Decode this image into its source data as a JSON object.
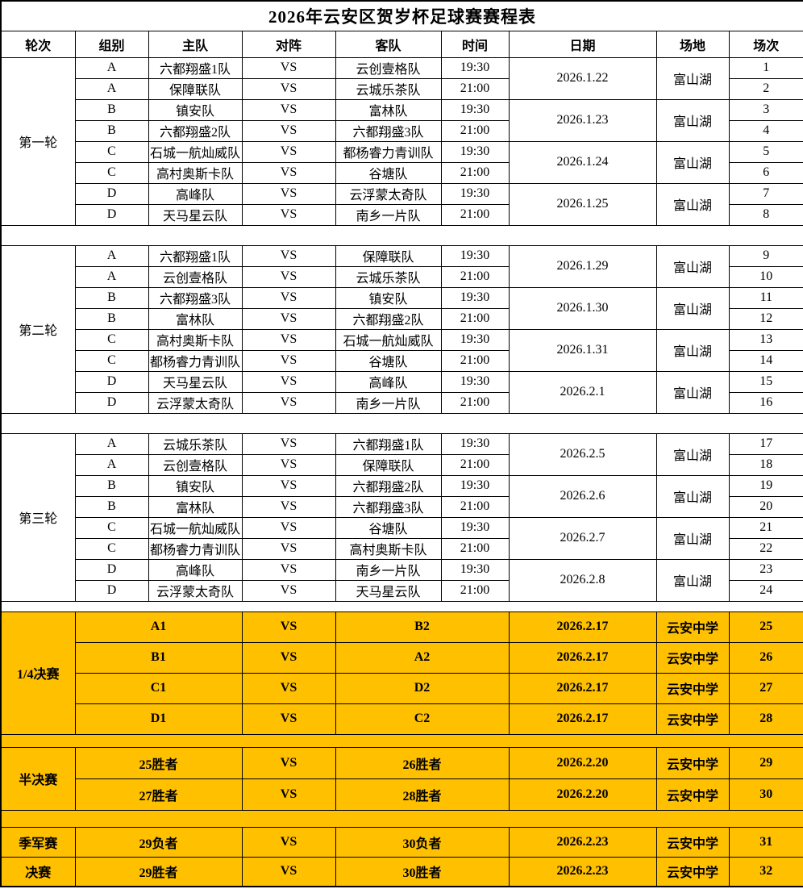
{
  "title": "2026年云安区贺岁杯足球赛赛程表",
  "columns": [
    "轮次",
    "组别",
    "主队",
    "对阵",
    "客队",
    "时间",
    "日期",
    "场地",
    "场次"
  ],
  "vs_label": "VS",
  "colors": {
    "highlight": "#FFC000",
    "grid": "#000000",
    "background": "#FFFFFF"
  },
  "rounds": [
    {
      "label": "第一轮",
      "matches": [
        {
          "group": "A",
          "home": "六都翔盛1队",
          "away": "云创壹格队",
          "time": "19:30",
          "match_no": "1"
        },
        {
          "group": "A",
          "home": "保障联队",
          "away": "云城乐茶队",
          "time": "21:00",
          "match_no": "2"
        },
        {
          "group": "B",
          "home": "镇安队",
          "away": "富林队",
          "time": "19:30",
          "match_no": "3"
        },
        {
          "group": "B",
          "home": "六都翔盛2队",
          "away": "六都翔盛3队",
          "time": "21:00",
          "match_no": "4"
        },
        {
          "group": "C",
          "home": "石城一航灿威队",
          "away": "都杨睿力青训队",
          "time": "19:30",
          "match_no": "5"
        },
        {
          "group": "C",
          "home": "高村奥斯卡队",
          "away": "谷塘队",
          "time": "21:00",
          "match_no": "6"
        },
        {
          "group": "D",
          "home": "高峰队",
          "away": "云浮蒙太奇队",
          "time": "19:30",
          "match_no": "7"
        },
        {
          "group": "D",
          "home": "天马星云队",
          "away": "南乡一片队",
          "time": "21:00",
          "match_no": "8"
        }
      ],
      "dates": [
        {
          "date": "2026.1.22",
          "venue": "富山湖"
        },
        {
          "date": "2026.1.23",
          "venue": "富山湖"
        },
        {
          "date": "2026.1.24",
          "venue": "富山湖"
        },
        {
          "date": "2026.1.25",
          "venue": "富山湖"
        }
      ]
    },
    {
      "label": "第二轮",
      "matches": [
        {
          "group": "A",
          "home": "六都翔盛1队",
          "away": "保障联队",
          "time": "19:30",
          "match_no": "9"
        },
        {
          "group": "A",
          "home": "云创壹格队",
          "away": "云城乐茶队",
          "time": "21:00",
          "match_no": "10"
        },
        {
          "group": "B",
          "home": "六都翔盛3队",
          "away": "镇安队",
          "time": "19:30",
          "match_no": "11"
        },
        {
          "group": "B",
          "home": "富林队",
          "away": "六都翔盛2队",
          "time": "21:00",
          "match_no": "12"
        },
        {
          "group": "C",
          "home": "高村奥斯卡队",
          "away": "石城一航灿威队",
          "time": "19:30",
          "match_no": "13"
        },
        {
          "group": "C",
          "home": "都杨睿力青训队",
          "away": "谷塘队",
          "time": "21:00",
          "match_no": "14"
        },
        {
          "group": "D",
          "home": "天马星云队",
          "away": "高峰队",
          "time": "19:30",
          "match_no": "15"
        },
        {
          "group": "D",
          "home": "云浮蒙太奇队",
          "away": "南乡一片队",
          "time": "21:00",
          "match_no": "16"
        }
      ],
      "dates": [
        {
          "date": "2026.1.29",
          "venue": "富山湖"
        },
        {
          "date": "2026.1.30",
          "venue": "富山湖"
        },
        {
          "date": "2026.1.31",
          "venue": "富山湖"
        },
        {
          "date": "2026.2.1",
          "venue": "富山湖"
        }
      ]
    },
    {
      "label": "第三轮",
      "matches": [
        {
          "group": "A",
          "home": "云城乐茶队",
          "away": "六都翔盛1队",
          "time": "19:30",
          "match_no": "17"
        },
        {
          "group": "A",
          "home": "云创壹格队",
          "away": "保障联队",
          "time": "21:00",
          "match_no": "18"
        },
        {
          "group": "B",
          "home": "镇安队",
          "away": "六都翔盛2队",
          "time": "19:30",
          "match_no": "19"
        },
        {
          "group": "B",
          "home": "富林队",
          "away": "六都翔盛3队",
          "time": "21:00",
          "match_no": "20"
        },
        {
          "group": "C",
          "home": "石城一航灿威队",
          "away": "谷塘队",
          "time": "19:30",
          "match_no": "21"
        },
        {
          "group": "C",
          "home": "都杨睿力青训队",
          "away": "高村奥斯卡队",
          "time": "21:00",
          "match_no": "22"
        },
        {
          "group": "D",
          "home": "高峰队",
          "away": "南乡一片队",
          "time": "19:30",
          "match_no": "23"
        },
        {
          "group": "D",
          "home": "云浮蒙太奇队",
          "away": "天马星云队",
          "time": "21:00",
          "match_no": "24"
        }
      ],
      "dates": [
        {
          "date": "2026.2.5",
          "venue": "富山湖"
        },
        {
          "date": "2026.2.6",
          "venue": "富山湖"
        },
        {
          "date": "2026.2.7",
          "venue": "富山湖"
        },
        {
          "date": "2026.2.8",
          "venue": "富山湖"
        }
      ]
    }
  ],
  "knockout": [
    {
      "label": "1/4决赛",
      "rows": [
        {
          "home": "A1",
          "away": "B2",
          "date": "2026.2.17",
          "venue": "云安中学",
          "match_no": "25"
        },
        {
          "home": "B1",
          "away": "A2",
          "date": "2026.2.17",
          "venue": "云安中学",
          "match_no": "26"
        },
        {
          "home": "C1",
          "away": "D2",
          "date": "2026.2.17",
          "venue": "云安中学",
          "match_no": "27"
        },
        {
          "home": "D1",
          "away": "C2",
          "date": "2026.2.17",
          "venue": "云安中学",
          "match_no": "28"
        }
      ]
    },
    {
      "label": "半决赛",
      "rows": [
        {
          "home": "25胜者",
          "away": "26胜者",
          "date": "2026.2.20",
          "venue": "云安中学",
          "match_no": "29"
        },
        {
          "home": "27胜者",
          "away": "28胜者",
          "date": "2026.2.20",
          "venue": "云安中学",
          "match_no": "30"
        }
      ]
    },
    {
      "label": "季军赛",
      "rows": [
        {
          "home": "29负者",
          "away": "30负者",
          "date": "2026.2.23",
          "venue": "云安中学",
          "match_no": "31"
        }
      ]
    },
    {
      "label": "决赛",
      "rows": [
        {
          "home": "29胜者",
          "away": "30胜者",
          "date": "2026.2.23",
          "venue": "云安中学",
          "match_no": "32"
        }
      ]
    }
  ]
}
